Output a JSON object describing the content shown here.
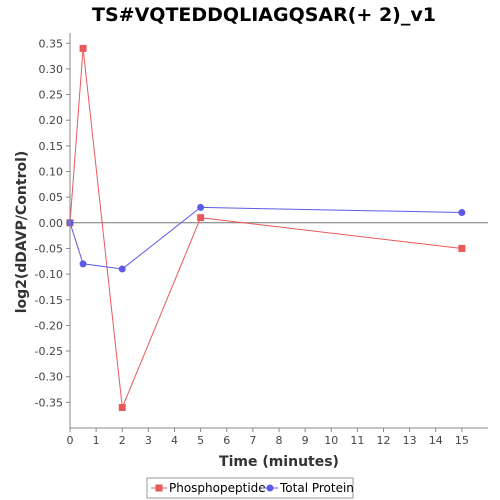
{
  "chart_data": {
    "type": "line",
    "title": "TS#VQTEDDQLIAGQSAR(+ 2)_v1",
    "xlabel": "Time (minutes)",
    "ylabel": "log2(dDAVP/Control)",
    "xlim": [
      0,
      16
    ],
    "ylim": [
      -0.4,
      0.37
    ],
    "xticks": [
      0,
      1,
      2,
      3,
      4,
      5,
      6,
      7,
      8,
      9,
      10,
      11,
      12,
      13,
      14,
      15
    ],
    "yticks": [
      -0.35,
      -0.3,
      -0.25,
      -0.2,
      -0.15,
      -0.1,
      -0.05,
      0.0,
      0.05,
      0.1,
      0.15,
      0.2,
      0.25,
      0.3,
      0.35
    ],
    "ytick_labels": [
      "-0.35",
      "-0.30",
      "-0.25",
      "-0.20",
      "-0.15",
      "-0.10",
      "-0.05",
      "0.00",
      "0.05",
      "0.10",
      "0.15",
      "0.20",
      "0.25",
      "0.30",
      "0.35"
    ],
    "zero_line": true,
    "grid": false,
    "legend_position": "bottom",
    "series": [
      {
        "name": "Phosphopeptide",
        "color": "#e8595a",
        "marker": "square",
        "x": [
          0,
          0.5,
          2,
          5,
          15
        ],
        "y": [
          0.0,
          0.34,
          -0.36,
          0.01,
          -0.05
        ]
      },
      {
        "name": "Total Protein",
        "color": "#5b5be8",
        "marker": "circle",
        "x": [
          0,
          0.5,
          2,
          5,
          15
        ],
        "y": [
          0.0,
          -0.08,
          -0.09,
          0.03,
          0.02
        ]
      }
    ]
  }
}
